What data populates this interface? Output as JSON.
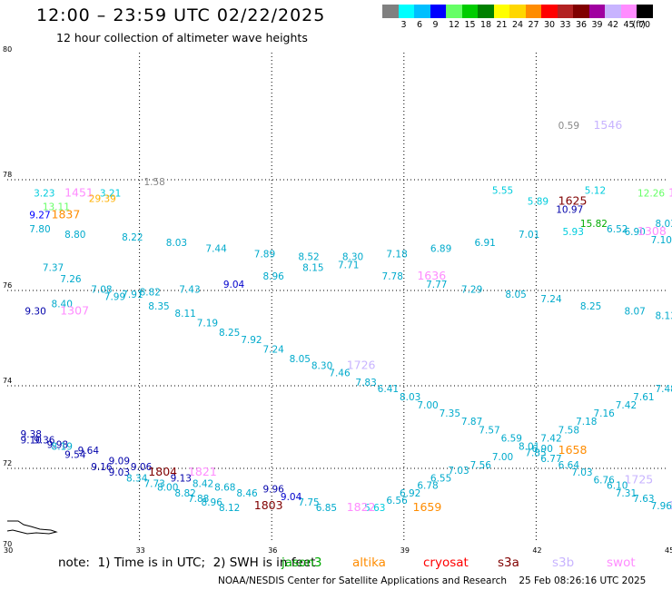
{
  "header": {
    "title": "12:00 – 23:59 UTC 02/22/2025",
    "subtitle": "12 hour collection of altimeter wave heights"
  },
  "color_scale": {
    "unit_label": "(ft)",
    "colors": [
      "#808080",
      "#00ffff",
      "#00bfff",
      "#0000ff",
      "#66ff66",
      "#00cc00",
      "#008000",
      "#ffff00",
      "#ffd700",
      "#ff8c00",
      "#ff0000",
      "#b22222",
      "#800000",
      "#a000a0",
      "#c8b4ff",
      "#ff8cff",
      "#000000"
    ],
    "labels": [
      "",
      "3",
      "6",
      "9",
      "12",
      "15",
      "18",
      "21",
      "24",
      "27",
      "30",
      "33",
      "36",
      "39",
      "42",
      "45",
      "70"
    ]
  },
  "map": {
    "lon_ticks": [
      "30",
      "33",
      "36",
      "39",
      "42",
      "45"
    ],
    "lat_ticks": [
      "80",
      "78",
      "76",
      "74",
      "72",
      "70"
    ],
    "bottom_left": "70",
    "top_left": "80"
  },
  "labels": [
    {
      "t": "0.59",
      "c": "#888888",
      "lon": 42.5,
      "lat": 78.8
    },
    {
      "t": "1546",
      "c": "#c8b4ff",
      "lon": 43.3,
      "lat": 78.8,
      "big": true
    },
    {
      "t": "1.58",
      "c": "#888888",
      "lon": 33.1,
      "lat": 77.9
    },
    {
      "t": "3.23",
      "c": "#00ccdd",
      "lon": 30.6,
      "lat": 77.7
    },
    {
      "t": "1451",
      "c": "#ff8cff",
      "lon": 31.3,
      "lat": 77.7,
      "big": true
    },
    {
      "t": "3.21",
      "c": "#00ccdd",
      "lon": 32.1,
      "lat": 77.7
    },
    {
      "t": "29.39",
      "c": "#ffb000",
      "lon": 31.85,
      "lat": 77.6
    },
    {
      "t": "13.11",
      "c": "#66ff66",
      "lon": 30.8,
      "lat": 77.45
    },
    {
      "t": "9.27",
      "c": "#0000ff",
      "lon": 30.5,
      "lat": 77.3
    },
    {
      "t": "1837",
      "c": "#ff8c00",
      "lon": 31.0,
      "lat": 77.3,
      "big": true
    },
    {
      "t": "7.80",
      "c": "#00aacc",
      "lon": 30.5,
      "lat": 77.05
    },
    {
      "t": "8.80",
      "c": "#00aacc",
      "lon": 31.3,
      "lat": 76.95
    },
    {
      "t": "8.22",
      "c": "#00aacc",
      "lon": 32.6,
      "lat": 76.9
    },
    {
      "t": "8.03",
      "c": "#00aacc",
      "lon": 33.6,
      "lat": 76.8
    },
    {
      "t": "7.44",
      "c": "#00aacc",
      "lon": 34.5,
      "lat": 76.7
    },
    {
      "t": "7.89",
      "c": "#00aacc",
      "lon": 35.6,
      "lat": 76.6
    },
    {
      "t": "8.52",
      "c": "#00aacc",
      "lon": 36.6,
      "lat": 76.55
    },
    {
      "t": "8.30",
      "c": "#00aacc",
      "lon": 37.6,
      "lat": 76.55
    },
    {
      "t": "7.18",
      "c": "#00aacc",
      "lon": 38.6,
      "lat": 76.6
    },
    {
      "t": "6.89",
      "c": "#00aacc",
      "lon": 39.6,
      "lat": 76.7
    },
    {
      "t": "6.91",
      "c": "#00aacc",
      "lon": 40.6,
      "lat": 76.8
    },
    {
      "t": "7.01",
      "c": "#00aacc",
      "lon": 41.6,
      "lat": 76.95
    },
    {
      "t": "5.55",
      "c": "#00ccdd",
      "lon": 41.0,
      "lat": 77.75
    },
    {
      "t": "5.89",
      "c": "#00ccdd",
      "lon": 41.8,
      "lat": 77.55
    },
    {
      "t": "1625",
      "c": "#800000",
      "lon": 42.5,
      "lat": 77.55,
      "big": true
    },
    {
      "t": "10.97",
      "c": "#0000aa",
      "lon": 42.45,
      "lat": 77.4
    },
    {
      "t": "5.12",
      "c": "#00ccdd",
      "lon": 43.1,
      "lat": 77.75
    },
    {
      "t": "12.26",
      "c": "#66ff66",
      "lon": 44.3,
      "lat": 77.7
    },
    {
      "t": "14",
      "c": "#ff8cff",
      "lon": 45.0,
      "lat": 77.7,
      "big": true
    },
    {
      "t": "15.82",
      "c": "#00aa00",
      "lon": 43.0,
      "lat": 77.15
    },
    {
      "t": "6.52",
      "c": "#00aacc",
      "lon": 43.6,
      "lat": 77.05
    },
    {
      "t": "6.90",
      "c": "#00aacc",
      "lon": 44.0,
      "lat": 77.0
    },
    {
      "t": "8.03",
      "c": "#00aacc",
      "lon": 44.7,
      "lat": 77.15
    },
    {
      "t": "1308",
      "c": "#ff8cff",
      "lon": 44.3,
      "lat": 77.0,
      "big": true
    },
    {
      "t": "5.93",
      "c": "#00ccdd",
      "lon": 42.6,
      "lat": 77.0
    },
    {
      "t": "7.10",
      "c": "#00aacc",
      "lon": 44.6,
      "lat": 76.85
    },
    {
      "t": "7.37",
      "c": "#00aacc",
      "lon": 30.8,
      "lat": 76.35
    },
    {
      "t": "7.26",
      "c": "#00aacc",
      "lon": 31.2,
      "lat": 76.15
    },
    {
      "t": "7.08",
      "c": "#00aacc",
      "lon": 31.9,
      "lat": 75.95
    },
    {
      "t": "7.99",
      "c": "#00aacc",
      "lon": 32.2,
      "lat": 75.8
    },
    {
      "t": "7.91",
      "c": "#00aacc",
      "lon": 32.6,
      "lat": 75.85
    },
    {
      "t": "8.82",
      "c": "#00aacc",
      "lon": 33.0,
      "lat": 75.9
    },
    {
      "t": "7.43",
      "c": "#00aacc",
      "lon": 33.9,
      "lat": 75.95
    },
    {
      "t": "9.04",
      "c": "#0000cc",
      "lon": 34.9,
      "lat": 76.05
    },
    {
      "t": "8.96",
      "c": "#00aacc",
      "lon": 35.8,
      "lat": 76.2
    },
    {
      "t": "8.15",
      "c": "#00aacc",
      "lon": 36.7,
      "lat": 76.35
    },
    {
      "t": "7.71",
      "c": "#00aacc",
      "lon": 37.5,
      "lat": 76.4
    },
    {
      "t": "7.78",
      "c": "#00aacc",
      "lon": 38.5,
      "lat": 76.2
    },
    {
      "t": "1636",
      "c": "#ff8cff",
      "lon": 39.3,
      "lat": 76.2,
      "big": true
    },
    {
      "t": "7.77",
      "c": "#00aacc",
      "lon": 39.5,
      "lat": 76.05
    },
    {
      "t": "7.29",
      "c": "#00aacc",
      "lon": 40.3,
      "lat": 75.95
    },
    {
      "t": "8.05",
      "c": "#00aacc",
      "lon": 41.3,
      "lat": 75.85
    },
    {
      "t": "7.24",
      "c": "#00aacc",
      "lon": 42.1,
      "lat": 75.75
    },
    {
      "t": "8.25",
      "c": "#00aacc",
      "lon": 43.0,
      "lat": 75.6
    },
    {
      "t": "8.07",
      "c": "#00aacc",
      "lon": 44.0,
      "lat": 75.5
    },
    {
      "t": "8.13",
      "c": "#00aacc",
      "lon": 44.7,
      "lat": 75.4
    },
    {
      "t": "8.40",
      "c": "#00aacc",
      "lon": 31.0,
      "lat": 75.65
    },
    {
      "t": "9.30",
      "c": "#0000aa",
      "lon": 30.4,
      "lat": 75.5
    },
    {
      "t": "1307",
      "c": "#ff8cff",
      "lon": 31.2,
      "lat": 75.5,
      "big": true
    },
    {
      "t": "8.35",
      "c": "#00aacc",
      "lon": 33.2,
      "lat": 75.6
    },
    {
      "t": "8.11",
      "c": "#00aacc",
      "lon": 33.8,
      "lat": 75.45
    },
    {
      "t": "7.19",
      "c": "#00aacc",
      "lon": 34.3,
      "lat": 75.25
    },
    {
      "t": "8.25",
      "c": "#00aacc",
      "lon": 34.8,
      "lat": 75.05
    },
    {
      "t": "7.92",
      "c": "#00aacc",
      "lon": 35.3,
      "lat": 74.9
    },
    {
      "t": "7.24",
      "c": "#00aacc",
      "lon": 35.8,
      "lat": 74.7
    },
    {
      "t": "8.05",
      "c": "#00aacc",
      "lon": 36.4,
      "lat": 74.5
    },
    {
      "t": "8.30",
      "c": "#00aacc",
      "lon": 36.9,
      "lat": 74.35
    },
    {
      "t": "1726",
      "c": "#c8b4ff",
      "lon": 37.7,
      "lat": 74.35,
      "big": true
    },
    {
      "t": "7.46",
      "c": "#00aacc",
      "lon": 37.3,
      "lat": 74.2
    },
    {
      "t": "7.83",
      "c": "#00aacc",
      "lon": 37.9,
      "lat": 74.0
    },
    {
      "t": "6.41",
      "c": "#00aacc",
      "lon": 38.4,
      "lat": 73.85
    },
    {
      "t": "8.03",
      "c": "#00aacc",
      "lon": 38.9,
      "lat": 73.65
    },
    {
      "t": "7.00",
      "c": "#00aacc",
      "lon": 39.3,
      "lat": 73.45
    },
    {
      "t": "7.35",
      "c": "#00aacc",
      "lon": 39.8,
      "lat": 73.25
    },
    {
      "t": "7.87",
      "c": "#00aacc",
      "lon": 40.3,
      "lat": 73.05
    },
    {
      "t": "7.57",
      "c": "#00aacc",
      "lon": 40.7,
      "lat": 72.85
    },
    {
      "t": "6.59",
      "c": "#00aacc",
      "lon": 41.2,
      "lat": 72.65
    },
    {
      "t": "8.01",
      "c": "#00aacc",
      "lon": 41.6,
      "lat": 72.45
    },
    {
      "t": "7.42",
      "c": "#00aacc",
      "lon": 42.1,
      "lat": 72.65
    },
    {
      "t": "7.58",
      "c": "#00aacc",
      "lon": 42.5,
      "lat": 72.85
    },
    {
      "t": "7.18",
      "c": "#00aacc",
      "lon": 42.9,
      "lat": 73.05
    },
    {
      "t": "7.16",
      "c": "#00aacc",
      "lon": 43.3,
      "lat": 73.25
    },
    {
      "t": "7.42",
      "c": "#00aacc",
      "lon": 43.8,
      "lat": 73.45
    },
    {
      "t": "7.61",
      "c": "#00aacc",
      "lon": 44.2,
      "lat": 73.65
    },
    {
      "t": "7.48",
      "c": "#00aacc",
      "lon": 44.7,
      "lat": 73.85
    },
    {
      "t": "6.90",
      "c": "#00aacc",
      "lon": 41.9,
      "lat": 72.4
    },
    {
      "t": "7.85",
      "c": "#00aacc",
      "lon": 41.75,
      "lat": 72.3
    },
    {
      "t": "1658",
      "c": "#ff8c00",
      "lon": 42.5,
      "lat": 72.35,
      "big": true
    },
    {
      "t": "7.00",
      "c": "#00aacc",
      "lon": 41.0,
      "lat": 72.2
    },
    {
      "t": "7.56",
      "c": "#00aacc",
      "lon": 40.5,
      "lat": 72.0
    },
    {
      "t": "7.03",
      "c": "#00aacc",
      "lon": 40.0,
      "lat": 71.85
    },
    {
      "t": "6.55",
      "c": "#00aacc",
      "lon": 39.6,
      "lat": 71.65
    },
    {
      "t": "6.78",
      "c": "#00aacc",
      "lon": 39.3,
      "lat": 71.45
    },
    {
      "t": "6.92",
      "c": "#00aacc",
      "lon": 38.9,
      "lat": 71.25
    },
    {
      "t": "6.56",
      "c": "#00aacc",
      "lon": 38.6,
      "lat": 71.05
    },
    {
      "t": "5.63",
      "c": "#00ccdd",
      "lon": 38.1,
      "lat": 70.85
    },
    {
      "t": "1659",
      "c": "#ff8c00",
      "lon": 39.2,
      "lat": 70.85,
      "big": true
    },
    {
      "t": "1822",
      "c": "#ff8cff",
      "lon": 37.7,
      "lat": 70.85,
      "big": true
    },
    {
      "t": "6.85",
      "c": "#00aacc",
      "lon": 37.0,
      "lat": 70.85
    },
    {
      "t": "7.75",
      "c": "#00aacc",
      "lon": 36.6,
      "lat": 71.0
    },
    {
      "t": "9.04",
      "c": "#0000cc",
      "lon": 36.2,
      "lat": 71.15
    },
    {
      "t": "9.96",
      "c": "#0000aa",
      "lon": 35.8,
      "lat": 71.35
    },
    {
      "t": "1803",
      "c": "#800000",
      "lon": 35.6,
      "lat": 70.9,
      "big": true
    },
    {
      "t": "6.77",
      "c": "#00aacc",
      "lon": 42.1,
      "lat": 72.15
    },
    {
      "t": "6.64",
      "c": "#00aacc",
      "lon": 42.5,
      "lat": 72.0
    },
    {
      "t": "7.03",
      "c": "#00aacc",
      "lon": 42.8,
      "lat": 71.8
    },
    {
      "t": "6.76",
      "c": "#00aacc",
      "lon": 43.3,
      "lat": 71.6
    },
    {
      "t": "1725",
      "c": "#c8b4ff",
      "lon": 44.0,
      "lat": 71.6,
      "big": true
    },
    {
      "t": "6.10",
      "c": "#00aacc",
      "lon": 43.6,
      "lat": 71.45
    },
    {
      "t": "7.31",
      "c": "#00aacc",
      "lon": 43.8,
      "lat": 71.25
    },
    {
      "t": "7.63",
      "c": "#00aacc",
      "lon": 44.2,
      "lat": 71.1
    },
    {
      "t": "7.96",
      "c": "#00aacc",
      "lon": 44.6,
      "lat": 70.9
    },
    {
      "t": "1",
      "c": "#c8b4ff",
      "lon": 45.0,
      "lat": 70.9,
      "big": true
    },
    {
      "t": "9.38",
      "c": "#0000aa",
      "lon": 30.3,
      "lat": 72.75
    },
    {
      "t": "9.10",
      "c": "#0000aa",
      "lon": 30.3,
      "lat": 72.6
    },
    {
      "t": "9.36",
      "c": "#0000aa",
      "lon": 30.6,
      "lat": 72.6
    },
    {
      "t": "9.98",
      "c": "#0000aa",
      "lon": 30.9,
      "lat": 72.5
    },
    {
      "t": "8.19",
      "c": "#00aacc",
      "lon": 31.0,
      "lat": 72.45
    },
    {
      "t": "9.64",
      "c": "#0000aa",
      "lon": 31.6,
      "lat": 72.35
    },
    {
      "t": "9.54",
      "c": "#0000aa",
      "lon": 31.3,
      "lat": 72.25
    },
    {
      "t": "9.09",
      "c": "#0000aa",
      "lon": 32.3,
      "lat": 72.1
    },
    {
      "t": "9.16",
      "c": "#0000aa",
      "lon": 31.9,
      "lat": 71.95
    },
    {
      "t": "9.06",
      "c": "#0000aa",
      "lon": 32.8,
      "lat": 71.95
    },
    {
      "t": "9.03",
      "c": "#0000aa",
      "lon": 32.3,
      "lat": 71.8
    },
    {
      "t": "1804",
      "c": "#800000",
      "lon": 33.2,
      "lat": 71.8,
      "big": true
    },
    {
      "t": "1821",
      "c": "#ff8cff",
      "lon": 34.1,
      "lat": 71.8,
      "big": true
    },
    {
      "t": "9.13",
      "c": "#0000aa",
      "lon": 33.7,
      "lat": 71.65
    },
    {
      "t": "8.34",
      "c": "#00aacc",
      "lon": 32.7,
      "lat": 71.65
    },
    {
      "t": "7.73",
      "c": "#00aacc",
      "lon": 33.1,
      "lat": 71.5
    },
    {
      "t": "8.42",
      "c": "#00aacc",
      "lon": 34.2,
      "lat": 71.5
    },
    {
      "t": "8.00",
      "c": "#00aacc",
      "lon": 33.4,
      "lat": 71.4
    },
    {
      "t": "8.68",
      "c": "#00aacc",
      "lon": 34.7,
      "lat": 71.4
    },
    {
      "t": "8.82",
      "c": "#00aacc",
      "lon": 33.8,
      "lat": 71.25
    },
    {
      "t": "8.46",
      "c": "#00aacc",
      "lon": 35.2,
      "lat": 71.25
    },
    {
      "t": "7.88",
      "c": "#00aacc",
      "lon": 34.1,
      "lat": 71.1
    },
    {
      "t": "8.96",
      "c": "#00aacc",
      "lon": 34.4,
      "lat": 71.0
    },
    {
      "t": "8.12",
      "c": "#00aacc",
      "lon": 34.8,
      "lat": 70.85
    }
  ],
  "legend": {
    "note": "note:  1) Time is in UTC;  2) SWH is in feet",
    "satellites": [
      {
        "name": "jason3",
        "color": "#00aa00"
      },
      {
        "name": "altika",
        "color": "#ff8c00"
      },
      {
        "name": "cryosat",
        "color": "#ff0000"
      },
      {
        "name": "s3a",
        "color": "#800000"
      },
      {
        "name": "s3b",
        "color": "#c8b4ff"
      },
      {
        "name": "swot",
        "color": "#ff8cff"
      }
    ]
  },
  "footer": {
    "credit": "NOAA/NESDIS Center for Satellite Applications and Research",
    "timestamp": "25 Feb 08:26:16 UTC 2025"
  }
}
